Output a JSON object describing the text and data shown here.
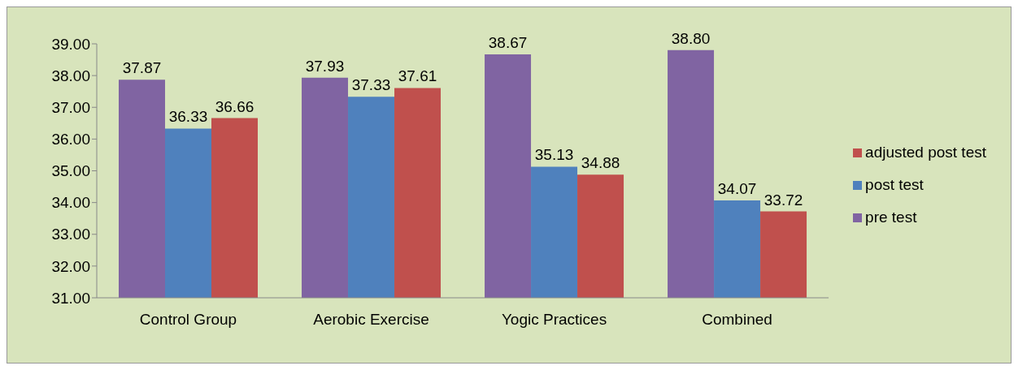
{
  "chart_data": {
    "type": "bar",
    "categories": [
      "Control Group",
      "Aerobic Exercise",
      "Yogic Practices",
      "Combined"
    ],
    "series": [
      {
        "name": "pre test",
        "color": "#8064a2",
        "values": [
          37.87,
          37.93,
          38.67,
          38.8
        ],
        "value_labels": [
          "37.87",
          "37.93",
          "38.67",
          "38.80"
        ]
      },
      {
        "name": "post test",
        "color": "#4f81bd",
        "values": [
          36.33,
          37.33,
          35.13,
          34.07
        ],
        "value_labels": [
          "36.33",
          "37.33",
          "35.13",
          "34.07"
        ]
      },
      {
        "name": "adjusted post test",
        "color": "#c0504d",
        "values": [
          36.66,
          37.61,
          34.88,
          33.72
        ],
        "value_labels": [
          "36.66",
          "37.61",
          "34.88",
          "33.72"
        ]
      }
    ],
    "ylim": [
      31,
      39
    ],
    "yticks": [
      {
        "value": 31,
        "label": "31.00"
      },
      {
        "value": 32,
        "label": "32.00"
      },
      {
        "value": 33,
        "label": "33.00"
      },
      {
        "value": 34,
        "label": "34.00"
      },
      {
        "value": 35,
        "label": "35.00"
      },
      {
        "value": 36,
        "label": "36.00"
      },
      {
        "value": 37,
        "label": "37.00"
      },
      {
        "value": 38,
        "label": "38.00"
      },
      {
        "value": 39,
        "label": "39.00"
      }
    ],
    "grid": false,
    "legend": "right"
  }
}
